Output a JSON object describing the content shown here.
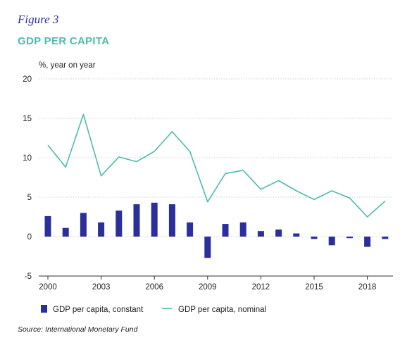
{
  "figure_label": "Figure 3",
  "chart_data": {
    "type": "bar+line",
    "title": "GDP PER CAPITA",
    "ylabel": "%, year on year",
    "ylim": [
      -5,
      20
    ],
    "yticks": [
      "20",
      "15",
      "10",
      "5",
      "0",
      "-5"
    ],
    "ytick_values": [
      20,
      15,
      10,
      5,
      0,
      -5
    ],
    "x": [
      2000,
      2001,
      2002,
      2003,
      2004,
      2005,
      2006,
      2007,
      2008,
      2009,
      2010,
      2011,
      2012,
      2013,
      2014,
      2015,
      2016,
      2017,
      2018,
      2019
    ],
    "xticks": [
      "2000",
      "2003",
      "2006",
      "2009",
      "2012",
      "2015",
      "2018"
    ],
    "xtick_values": [
      2000,
      2003,
      2006,
      2009,
      2012,
      2015,
      2018
    ],
    "grid": true,
    "legend_placement": "bottom",
    "series": [
      {
        "name": "GDP per capita, constant",
        "type": "bar",
        "color": "#2b2f9b",
        "values": [
          2.6,
          1.1,
          3.0,
          1.8,
          3.3,
          4.1,
          4.3,
          4.1,
          1.8,
          -2.7,
          1.6,
          1.8,
          0.7,
          0.9,
          0.4,
          -0.3,
          -1.1,
          -0.2,
          -1.3,
          -0.3
        ]
      },
      {
        "name": "GDP per capita, nominal",
        "type": "line",
        "color": "#4fbab0",
        "values": [
          11.6,
          8.8,
          15.5,
          7.7,
          10.1,
          9.5,
          10.8,
          13.3,
          10.8,
          4.4,
          8.0,
          8.4,
          6.0,
          7.1,
          5.8,
          4.7,
          5.8,
          4.9,
          2.5,
          4.5
        ]
      }
    ]
  },
  "source": "Source: International Monetary Fund"
}
